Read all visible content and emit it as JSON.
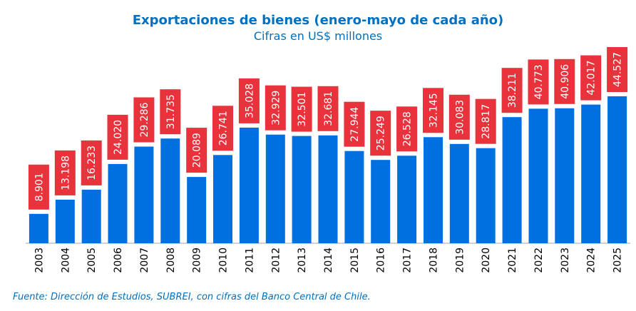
{
  "chart_data": {
    "type": "bar",
    "title": "Exportaciones de bienes (enero-mayo de cada año)",
    "subtitle": "Cifras en US$ millones",
    "source": "Fuente: Dirección de Estudios, SUBREI, con cifras del Banco Central de Chile.",
    "categories": [
      "2003",
      "2004",
      "2005",
      "2006",
      "2007",
      "2008",
      "2009",
      "2010",
      "2011",
      "2012",
      "2013",
      "2014",
      "2015",
      "2016",
      "2017",
      "2018",
      "2019",
      "2020",
      "2021",
      "2022",
      "2023",
      "2024",
      "2025"
    ],
    "values": [
      8901,
      13198,
      16233,
      24020,
      29286,
      31735,
      20089,
      26741,
      35028,
      32929,
      32501,
      32681,
      27944,
      25249,
      26528,
      32145,
      30083,
      28817,
      38211,
      40773,
      40906,
      42017,
      44527
    ],
    "data_labels": [
      "8.901",
      "13.198",
      "16.233",
      "24.020",
      "29.286",
      "31.735",
      "20.089",
      "26.741",
      "35.028",
      "32.929",
      "32.501",
      "32.681",
      "27.944",
      "25.249",
      "26.528",
      "32.145",
      "30.083",
      "28.817",
      "38.211",
      "40.773",
      "40.906",
      "42.017",
      "44.527"
    ],
    "bar_color": "#0070e0",
    "label_bg_color": "#e8323c",
    "label_text_color": "#ffffff",
    "title_color": "#0070c0",
    "xlabel": "",
    "ylabel": "",
    "grid": false,
    "legend": "none"
  }
}
